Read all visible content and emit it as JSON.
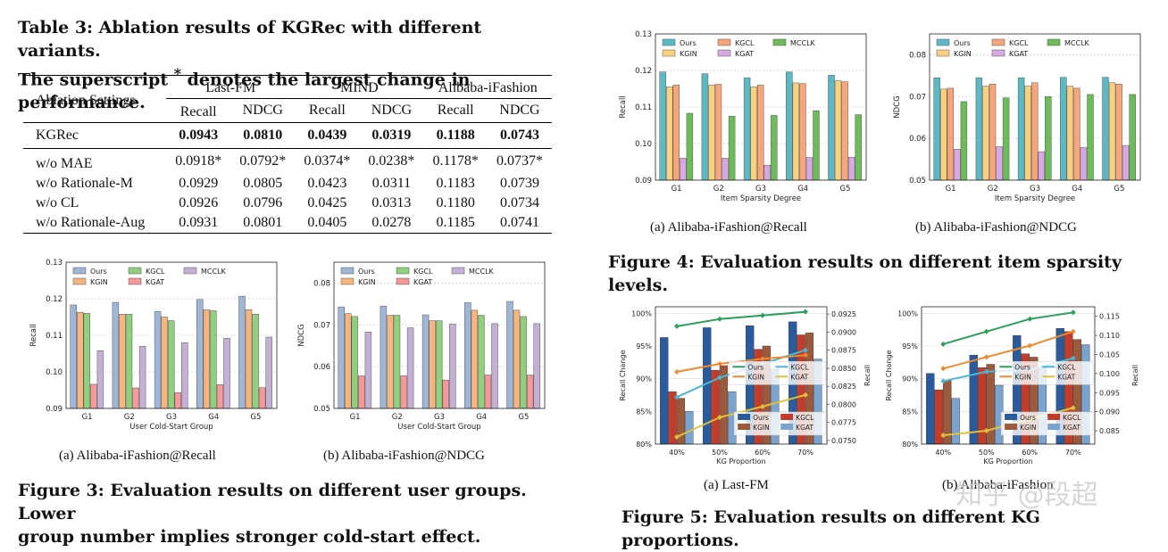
{
  "table3": {
    "caption": "Table 3: Ablation results of KGRec with different variants.",
    "caption2": "The superscript * denotes the largest change in performance.",
    "settings_header": "Ablation Settings",
    "datasets": [
      "Last-FM",
      "MIND",
      "Alibaba-iFashion"
    ],
    "metrics": [
      "Recall",
      "NDCG",
      "Recall",
      "NDCG",
      "Recall",
      "NDCG"
    ],
    "main_row": {
      "label": "KGRec",
      "values": [
        "0.0943",
        "0.0810",
        "0.0439",
        "0.0319",
        "0.1188",
        "0.0743"
      ]
    },
    "rows": [
      {
        "label": "w/o MAE",
        "values": [
          "0.0918*",
          "0.0792*",
          "0.0374*",
          "0.0238*",
          "0.1178*",
          "0.0737*"
        ]
      },
      {
        "label": "w/o Rationale-M",
        "values": [
          "0.0929",
          "0.0805",
          "0.0423",
          "0.0311",
          "0.1183",
          "0.0739"
        ]
      },
      {
        "label": "w/o CL",
        "values": [
          "0.0926",
          "0.0796",
          "0.0425",
          "0.0313",
          "0.1180",
          "0.0734"
        ]
      },
      {
        "label": "w/o Rationale-Aug",
        "values": [
          "0.0931",
          "0.0801",
          "0.0405",
          "0.0278",
          "0.1185",
          "0.0741"
        ]
      }
    ]
  },
  "fig3": {
    "caption": "Figure 3: Evaluation results on different user groups. Lower",
    "caption2": "group number implies stronger cold-start effect.",
    "sub_a": "(a)  Alibaba-iFashion@Recall",
    "sub_b": "(b)  Alibaba-iFashion@NDCG"
  },
  "fig4": {
    "caption": "Figure 4: Evaluation results on different item sparsity levels.",
    "sub_a": "(a)  Alibaba-iFashion@Recall",
    "sub_b": "(b)  Alibaba-iFashion@NDCG"
  },
  "fig5": {
    "caption": "Figure 5: Evaluation results on different KG proportions.",
    "sub_a": "(a)  Last-FM",
    "sub_b": "(b) Alibaba-iFashion",
    "watermark": "知乎 @段超"
  },
  "colors": {
    "Ours": "#9fb6d6",
    "KGIN": "#f6b47e",
    "KGCL": "#8fcf7e",
    "KGAT": "#f4989a",
    "MCCLK": "#c5b0d5",
    "Ours4": "#5bbac6",
    "KGCL4": "#f7a57a",
    "MCCLK4": "#6cbd5a",
    "KGIN4": "#f9d17e",
    "KGAT4": "#d7a9e3",
    "bar_ours5": "#2a5b9c",
    "bar_kgcl5": "#c23b2b",
    "bar_kgin5": "#9c5a3c",
    "bar_kgat5": "#7ba3d0",
    "line_ours5": "#2ca05a",
    "line_kgcl5": "#4bb7d4",
    "line_kgin5": "#f08a2e",
    "line_kgat5": "#e0c23a"
  },
  "chart_data": [
    {
      "type": "bar",
      "id": "fig3a",
      "categories": [
        "G1",
        "G2",
        "G3",
        "G4",
        "G5"
      ],
      "ylabel": "Recall",
      "xlabel": "User Cold-Start Group",
      "ylim": [
        0.09,
        0.13
      ],
      "yticks": [
        0.09,
        0.1,
        0.11,
        0.12,
        0.13
      ],
      "ytick_labels": [
        "0.09",
        "0.10",
        "0.11",
        "0.12",
        "0.13"
      ],
      "legend": [
        "Ours",
        "KGCL",
        "MCCLK",
        "KGIN",
        "KGAT"
      ],
      "series": [
        {
          "name": "Ours",
          "color": "#9fb6d6",
          "values": [
            0.1183,
            0.119,
            0.1165,
            0.1198,
            0.1207
          ]
        },
        {
          "name": "KGIN",
          "color": "#f6b47e",
          "values": [
            0.1163,
            0.1158,
            0.115,
            0.117,
            0.117
          ]
        },
        {
          "name": "KGCL",
          "color": "#8fcf7e",
          "values": [
            0.116,
            0.1158,
            0.114,
            0.1167,
            0.1158
          ]
        },
        {
          "name": "KGAT",
          "color": "#f4989a",
          "values": [
            0.0966,
            0.0956,
            0.0943,
            0.0965,
            0.0957
          ]
        },
        {
          "name": "MCCLK",
          "color": "#c5b0d5",
          "values": [
            0.1058,
            0.107,
            0.108,
            0.1092,
            0.1095
          ]
        }
      ]
    },
    {
      "type": "bar",
      "id": "fig3b",
      "categories": [
        "G1",
        "G2",
        "G3",
        "G4",
        "G5"
      ],
      "ylabel": "NDCG",
      "xlabel": "User Cold-Start Group",
      "ylim": [
        0.05,
        0.085
      ],
      "yticks": [
        0.05,
        0.06,
        0.07,
        0.08
      ],
      "ytick_labels": [
        "0.05",
        "0.06",
        "0.07",
        "0.08"
      ],
      "legend": [
        "Ours",
        "KGCL",
        "MCCLK",
        "KGIN",
        "KGAT"
      ],
      "series": [
        {
          "name": "Ours",
          "color": "#9fb6d6",
          "values": [
            0.0743,
            0.0745,
            0.0724,
            0.0753,
            0.0756
          ]
        },
        {
          "name": "KGIN",
          "color": "#f6b47e",
          "values": [
            0.0727,
            0.0723,
            0.071,
            0.0735,
            0.0735
          ]
        },
        {
          "name": "KGCL",
          "color": "#8fcf7e",
          "values": [
            0.072,
            0.0723,
            0.071,
            0.0723,
            0.072
          ]
        },
        {
          "name": "KGAT",
          "color": "#f4989a",
          "values": [
            0.0578,
            0.0578,
            0.0568,
            0.058,
            0.058
          ]
        },
        {
          "name": "MCCLK",
          "color": "#c5b0d5",
          "values": [
            0.0683,
            0.0693,
            0.0702,
            0.0703,
            0.0703
          ]
        }
      ]
    },
    {
      "type": "bar",
      "id": "fig4a",
      "categories": [
        "G1",
        "G2",
        "G3",
        "G4",
        "G5"
      ],
      "ylabel": "Recall",
      "xlabel": "Item Sparsity Degree",
      "ylim": [
        0.09,
        0.13
      ],
      "yticks": [
        0.09,
        0.1,
        0.11,
        0.12,
        0.13
      ],
      "ytick_labels": [
        "0.09",
        "0.10",
        "0.11",
        "0.12",
        "0.13"
      ],
      "legend": [
        "Ours",
        "KGCL",
        "MCCLK",
        "KGIN",
        "KGAT"
      ],
      "series": [
        {
          "name": "Ours",
          "color": "#5bbac6",
          "values": [
            0.1196,
            0.1191,
            0.118,
            0.1196,
            0.1187
          ]
        },
        {
          "name": "KGIN",
          "color": "#f9d17e",
          "values": [
            0.1155,
            0.116,
            0.1155,
            0.1166,
            0.1172
          ]
        },
        {
          "name": "KGCL",
          "color": "#f7a57a",
          "values": [
            0.116,
            0.1162,
            0.116,
            0.1164,
            0.1169
          ]
        },
        {
          "name": "KGAT",
          "color": "#d7a9e3",
          "values": [
            0.096,
            0.096,
            0.0941,
            0.0962,
            0.0963
          ]
        },
        {
          "name": "MCCLK",
          "color": "#6cbd5a",
          "values": [
            0.1083,
            0.1075,
            0.1077,
            0.109,
            0.1079
          ]
        }
      ]
    },
    {
      "type": "bar",
      "id": "fig4b",
      "categories": [
        "G1",
        "G2",
        "G3",
        "G4",
        "G5"
      ],
      "ylabel": "NDCG",
      "xlabel": "Item Sparsity Degree",
      "ylim": [
        0.05,
        0.085
      ],
      "yticks": [
        0.05,
        0.06,
        0.07,
        0.08
      ],
      "ytick_labels": [
        "0.05",
        "0.06",
        "0.07",
        "0.08"
      ],
      "legend": [
        "Ours",
        "KGCL",
        "MCCLK",
        "KGIN",
        "KGAT"
      ],
      "series": [
        {
          "name": "Ours",
          "color": "#5bbac6",
          "values": [
            0.0745,
            0.0745,
            0.0745,
            0.0746,
            0.0746
          ]
        },
        {
          "name": "KGIN",
          "color": "#f9d17e",
          "values": [
            0.0718,
            0.0725,
            0.0725,
            0.0725,
            0.0733
          ]
        },
        {
          "name": "KGCL",
          "color": "#f7a57a",
          "values": [
            0.072,
            0.073,
            0.0733,
            0.072,
            0.073
          ]
        },
        {
          "name": "KGAT",
          "color": "#d7a9e3",
          "values": [
            0.0574,
            0.058,
            0.0568,
            0.0578,
            0.0583
          ]
        },
        {
          "name": "MCCLK",
          "color": "#6cbd5a",
          "values": [
            0.0688,
            0.0697,
            0.07,
            0.0705,
            0.0705
          ]
        }
      ]
    },
    {
      "type": "bar+line",
      "id": "fig5a",
      "categories": [
        "40%",
        "50%",
        "60%",
        "70%"
      ],
      "xlabel": "KG Proportion",
      "ylabel": "Recall Change",
      "y2label": "Recall",
      "ylim": [
        80,
        101
      ],
      "yticks": [
        80,
        85,
        90,
        95,
        100
      ],
      "ytick_labels": [
        "80%",
        "85%",
        "90%",
        "95%",
        "100%"
      ],
      "y2lim": [
        0.0745,
        0.0935
      ],
      "y2ticks": [
        0.075,
        0.0775,
        0.08,
        0.0825,
        0.085,
        0.0875,
        0.09,
        0.0925
      ],
      "y2tick_labels": [
        "0.0750",
        "0.0775",
        "0.0800",
        "0.0825",
        "0.0850",
        "0.0875",
        "0.0900",
        "0.0925"
      ],
      "bars": [
        {
          "name": "Ours",
          "color": "#2a5b9c",
          "values": [
            96.3,
            97.8,
            98.1,
            98.7
          ]
        },
        {
          "name": "KGCL",
          "color": "#c23b2b",
          "values": [
            88.0,
            91.3,
            94.5,
            96.7
          ]
        },
        {
          "name": "KGIN",
          "color": "#9c5a3c",
          "values": [
            87.0,
            92.0,
            95.0,
            97.0
          ]
        },
        {
          "name": "KGAT",
          "color": "#7ba3d0",
          "values": [
            85.0,
            88.0,
            91.5,
            93.0
          ]
        }
      ],
      "lines": [
        {
          "name": "Ours",
          "color": "#2ca05a",
          "values": [
            0.0908,
            0.0918,
            0.0923,
            0.0928
          ]
        },
        {
          "name": "KGCL",
          "color": "#4bb7d4",
          "values": [
            0.081,
            0.0837,
            0.0856,
            0.0875
          ]
        },
        {
          "name": "KGIN",
          "color": "#f08a2e",
          "values": [
            0.0845,
            0.0856,
            0.0863,
            0.0868
          ]
        },
        {
          "name": "KGAT",
          "color": "#e0c23a",
          "values": [
            0.0755,
            0.0782,
            0.0797,
            0.0813
          ]
        }
      ]
    },
    {
      "type": "bar+line",
      "id": "fig5b",
      "categories": [
        "40%",
        "50%",
        "60%",
        "70%"
      ],
      "xlabel": "KG Proportion",
      "ylabel": "Recall Change",
      "y2label": "Recall",
      "ylim": [
        80,
        101
      ],
      "yticks": [
        80,
        85,
        90,
        95,
        100
      ],
      "ytick_labels": [
        "80%",
        "85%",
        "90%",
        "95%",
        "100%"
      ],
      "y2lim": [
        0.0815,
        0.1175
      ],
      "y2ticks": [
        0.085,
        0.09,
        0.095,
        0.1,
        0.105,
        0.11,
        0.115
      ],
      "y2tick_labels": [
        "0.085",
        "0.090",
        "0.095",
        "0.100",
        "0.105",
        "0.110",
        "0.115"
      ],
      "bars": [
        {
          "name": "Ours",
          "color": "#2a5b9c",
          "values": [
            90.8,
            93.6,
            96.6,
            97.7
          ]
        },
        {
          "name": "KGCL",
          "color": "#c23b2b",
          "values": [
            88.3,
            91.7,
            93.8,
            97.2
          ]
        },
        {
          "name": "KGIN",
          "color": "#9c5a3c",
          "values": [
            89.7,
            92.2,
            93.3,
            96.0
          ]
        },
        {
          "name": "KGAT",
          "color": "#7ba3d0",
          "values": [
            87.0,
            89.0,
            91.8,
            95.2
          ]
        }
      ],
      "lines": [
        {
          "name": "Ours",
          "color": "#2ca05a",
          "values": [
            0.1077,
            0.111,
            0.1143,
            0.116
          ]
        },
        {
          "name": "KGCL",
          "color": "#4bb7d4",
          "values": [
            0.098,
            0.1005,
            0.101,
            0.104
          ]
        },
        {
          "name": "KGIN",
          "color": "#f08a2e",
          "values": [
            0.1013,
            0.1043,
            0.1073,
            0.111
          ]
        },
        {
          "name": "KGAT",
          "color": "#e0c23a",
          "values": [
            0.0838,
            0.085,
            0.088,
            0.091
          ]
        }
      ]
    }
  ]
}
